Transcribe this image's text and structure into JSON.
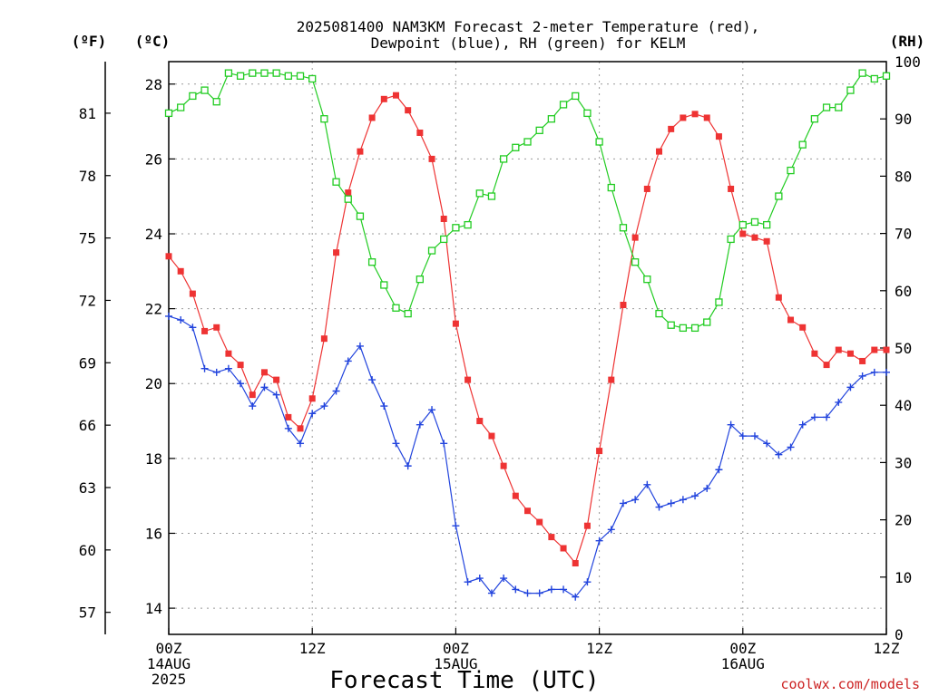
{
  "chart_data": {
    "type": "line",
    "title": [
      "2025081400 NAM3KM Forecast 2-meter Temperature (red),",
      "Dewpoint (blue), RH (green) for KELM"
    ],
    "xlabel": "Forecast Time (UTC)",
    "watermark": "coolwx.com/models",
    "unit_f": "(ºF)",
    "unit_c": "(ºC)",
    "unit_rh": "(RH)",
    "x_ticks": [
      {
        "hour": 0,
        "lines": [
          "00Z",
          "14AUG",
          "2025"
        ]
      },
      {
        "hour": 12,
        "lines": [
          "12Z"
        ]
      },
      {
        "hour": 24,
        "lines": [
          "00Z",
          "15AUG"
        ]
      },
      {
        "hour": 36,
        "lines": [
          "12Z"
        ]
      },
      {
        "hour": 48,
        "lines": [
          "00Z",
          "16AUG"
        ]
      },
      {
        "hour": 60,
        "lines": [
          "12Z"
        ]
      }
    ],
    "xlim": [
      0,
      60
    ],
    "ylim_c": [
      13.3,
      28.6
    ],
    "ylim_rh": [
      0,
      100
    ],
    "y_ticks_c": [
      14,
      16,
      18,
      20,
      22,
      24,
      26,
      28
    ],
    "y_ticks_f": [
      57,
      60,
      63,
      66,
      69,
      72,
      75,
      78,
      81
    ],
    "y_ticks_rh": [
      0,
      10,
      20,
      30,
      40,
      50,
      60,
      70,
      80,
      90,
      100
    ],
    "colors": {
      "temperature": "#ee3333",
      "dewpoint": "#2244dd",
      "rh": "#22cc22"
    },
    "series": [
      {
        "key": "temperature",
        "axis": "c",
        "marker": "filled-square",
        "values": [
          23.4,
          23.0,
          22.4,
          21.4,
          21.5,
          20.8,
          20.5,
          19.7,
          20.3,
          20.1,
          19.1,
          18.8,
          19.6,
          21.2,
          23.5,
          25.1,
          26.2,
          27.1,
          27.6,
          27.7,
          27.3,
          26.7,
          26.0,
          24.4,
          21.6,
          20.1,
          19.0,
          18.6,
          17.8,
          17.0,
          16.6,
          16.3,
          15.9,
          15.6,
          15.2,
          16.2,
          18.2,
          20.1,
          22.1,
          23.9,
          25.2,
          26.2,
          26.8,
          27.1,
          27.2,
          27.1,
          26.6,
          25.2,
          24.0,
          23.9,
          23.8,
          22.3,
          21.7,
          21.5,
          20.8,
          20.5,
          20.9,
          20.8,
          20.6,
          20.9,
          20.9
        ]
      },
      {
        "key": "dewpoint",
        "axis": "c",
        "marker": "plus",
        "values": [
          21.8,
          21.7,
          21.5,
          20.4,
          20.3,
          20.4,
          20.0,
          19.4,
          19.9,
          19.7,
          18.8,
          18.4,
          19.2,
          19.4,
          19.8,
          20.6,
          21.0,
          20.1,
          19.4,
          18.4,
          17.8,
          18.9,
          19.3,
          18.4,
          16.2,
          14.7,
          14.8,
          14.4,
          14.8,
          14.5,
          14.4,
          14.4,
          14.5,
          14.5,
          14.3,
          14.7,
          15.8,
          16.1,
          16.8,
          16.9,
          17.3,
          16.7,
          16.8,
          16.9,
          17.0,
          17.2,
          17.7,
          18.9,
          18.6,
          18.6,
          18.4,
          18.1,
          18.3,
          18.9,
          19.1,
          19.1,
          19.5,
          19.9,
          20.2,
          20.3,
          20.3
        ]
      },
      {
        "key": "rh",
        "axis": "rh",
        "marker": "open-square",
        "values": [
          91,
          92,
          94,
          95,
          93,
          98,
          97.5,
          98,
          98,
          98,
          97.5,
          97.5,
          97,
          90,
          79,
          76,
          73,
          65,
          61,
          57,
          56,
          62,
          67,
          69,
          71,
          71.5,
          77,
          76.5,
          83,
          85,
          86,
          88,
          90,
          92.5,
          94,
          91,
          86,
          78,
          71,
          65,
          62,
          56,
          54,
          53.5,
          53.5,
          54.5,
          58,
          69,
          71.5,
          72,
          71.5,
          76.5,
          81,
          85.5,
          90,
          92,
          92,
          95,
          98,
          97,
          97.5
        ]
      }
    ]
  }
}
